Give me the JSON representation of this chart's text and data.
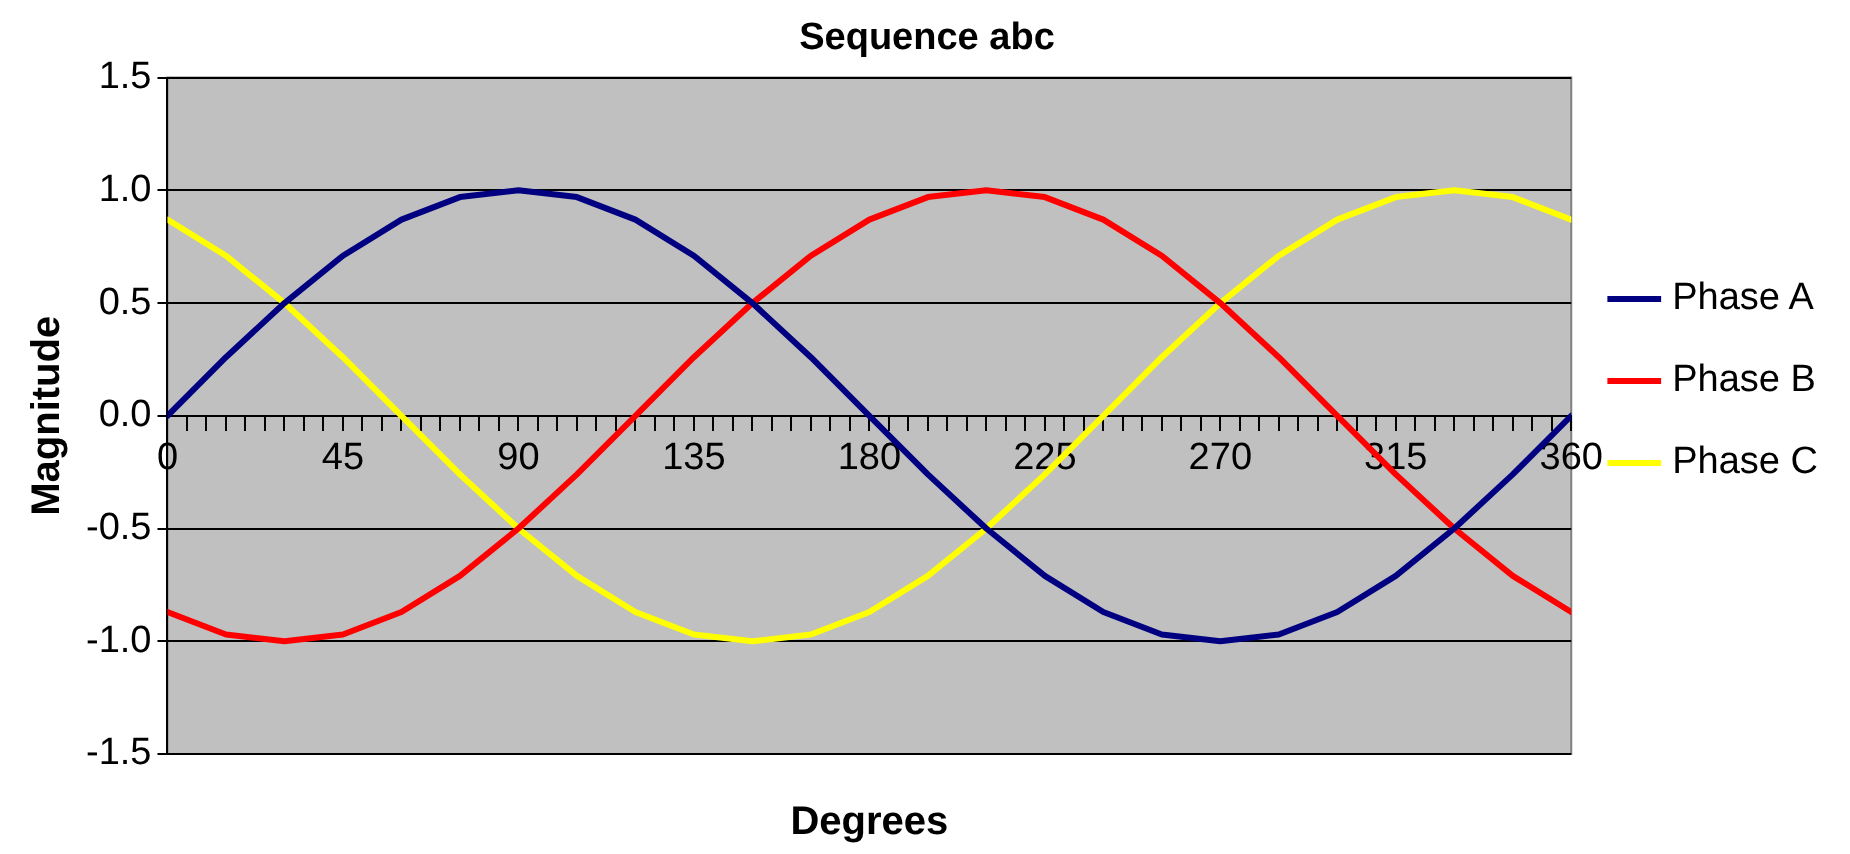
{
  "chart_data": {
    "type": "line",
    "title": "Sequence abc",
    "xlabel": "Degrees",
    "ylabel": "Magnitude",
    "x": [
      0,
      15,
      30,
      45,
      60,
      75,
      90,
      105,
      120,
      135,
      150,
      165,
      180,
      195,
      210,
      225,
      240,
      255,
      270,
      285,
      300,
      315,
      330,
      345,
      360
    ],
    "series": [
      {
        "name": "Phase A",
        "color": "#000080",
        "values": [
          0,
          0.26,
          0.5,
          0.71,
          0.87,
          0.97,
          1,
          0.97,
          0.87,
          0.71,
          0.5,
          0.26,
          0,
          -0.26,
          -0.5,
          -0.71,
          -0.87,
          -0.97,
          -1,
          -0.97,
          -0.87,
          -0.71,
          -0.5,
          -0.26,
          0
        ]
      },
      {
        "name": "Phase B",
        "color": "#ff0000",
        "values": [
          -0.87,
          -0.97,
          -1,
          -0.97,
          -0.87,
          -0.71,
          -0.5,
          -0.26,
          0,
          0.26,
          0.5,
          0.71,
          0.87,
          0.97,
          1,
          0.97,
          0.87,
          0.71,
          0.5,
          0.26,
          0,
          -0.26,
          -0.5,
          -0.71,
          -0.87
        ]
      },
      {
        "name": "Phase C",
        "color": "#ffff00",
        "values": [
          0.87,
          0.71,
          0.5,
          0.26,
          0,
          -0.26,
          -0.5,
          -0.71,
          -0.87,
          -0.97,
          -1,
          -0.97,
          -0.87,
          -0.71,
          -0.5,
          -0.26,
          0,
          0.26,
          0.5,
          0.71,
          0.87,
          0.97,
          1,
          0.97,
          0.87
        ]
      }
    ],
    "xlim": [
      0,
      360
    ],
    "xticks": [
      0,
      {
        "value": 5,
        "label": null
      },
      {
        "value": 10,
        "label": null
      },
      {
        "value": 15,
        "label": null
      },
      {
        "value": 20,
        "label": null
      },
      {
        "value": 25,
        "label": null
      },
      {
        "value": 30,
        "label": null
      },
      {
        "value": 35,
        "label": null
      },
      {
        "value": 40,
        "label": null
      },
      45,
      {
        "value": 50,
        "label": null
      },
      {
        "value": 55,
        "label": null
      },
      {
        "value": 60,
        "label": null
      },
      {
        "value": 65,
        "label": null
      },
      {
        "value": 70,
        "label": null
      },
      {
        "value": 75,
        "label": null
      },
      {
        "value": 80,
        "label": null
      },
      {
        "value": 85,
        "label": null
      },
      90,
      {
        "value": 95,
        "label": null
      },
      {
        "value": 100,
        "label": null
      },
      {
        "value": 105,
        "label": null
      },
      {
        "value": 110,
        "label": null
      },
      {
        "value": 115,
        "label": null
      },
      {
        "value": 120,
        "label": null
      },
      {
        "value": 125,
        "label": null
      },
      {
        "value": 130,
        "label": null
      },
      135,
      {
        "value": 140,
        "label": null
      },
      {
        "value": 145,
        "label": null
      },
      {
        "value": 150,
        "label": null
      },
      {
        "value": 155,
        "label": null
      },
      {
        "value": 160,
        "label": null
      },
      {
        "value": 165,
        "label": null
      },
      {
        "value": 170,
        "label": null
      },
      {
        "value": 175,
        "label": null
      },
      180,
      {
        "value": 185,
        "label": null
      },
      {
        "value": 190,
        "label": null
      },
      {
        "value": 195,
        "label": null
      },
      {
        "value": 200,
        "label": null
      },
      {
        "value": 205,
        "label": null
      },
      {
        "value": 210,
        "label": null
      },
      {
        "value": 215,
        "label": null
      },
      {
        "value": 220,
        "label": null
      },
      225,
      {
        "value": 230,
        "label": null
      },
      {
        "value": 235,
        "label": null
      },
      {
        "value": 240,
        "label": null
      },
      {
        "value": 245,
        "label": null
      },
      {
        "value": 250,
        "label": null
      },
      {
        "value": 255,
        "label": null
      },
      {
        "value": 260,
        "label": null
      },
      {
        "value": 265,
        "label": null
      },
      270,
      {
        "value": 275,
        "label": null
      },
      {
        "value": 280,
        "label": null
      },
      {
        "value": 285,
        "label": null
      },
      {
        "value": 290,
        "label": null
      },
      {
        "value": 295,
        "label": null
      },
      {
        "value": 300,
        "label": null
      },
      {
        "value": 305,
        "label": null
      },
      {
        "value": 310,
        "label": null
      },
      315,
      {
        "value": 320,
        "label": null
      },
      {
        "value": 325,
        "label": null
      },
      {
        "value": 330,
        "label": null
      },
      {
        "value": 335,
        "label": null
      },
      {
        "value": 340,
        "label": null
      },
      {
        "value": 345,
        "label": null
      },
      {
        "value": 350,
        "label": null
      },
      {
        "value": 355,
        "label": null
      },
      360
    ],
    "ylim": [
      -1.5,
      1.5
    ],
    "yticks": [
      {
        "value": -1.5,
        "label": "-1.5"
      },
      {
        "value": -1,
        "label": "-1.0"
      },
      {
        "value": -0.5,
        "label": "-0.5"
      },
      {
        "value": 0,
        "label": "0.0"
      },
      {
        "value": 0.5,
        "label": "0.5"
      },
      {
        "value": 1,
        "label": "1.0"
      },
      {
        "value": 1.5,
        "label": "1.5"
      }
    ],
    "grid": "y",
    "legend": "right",
    "marker": "none",
    "line_style": "solid"
  }
}
